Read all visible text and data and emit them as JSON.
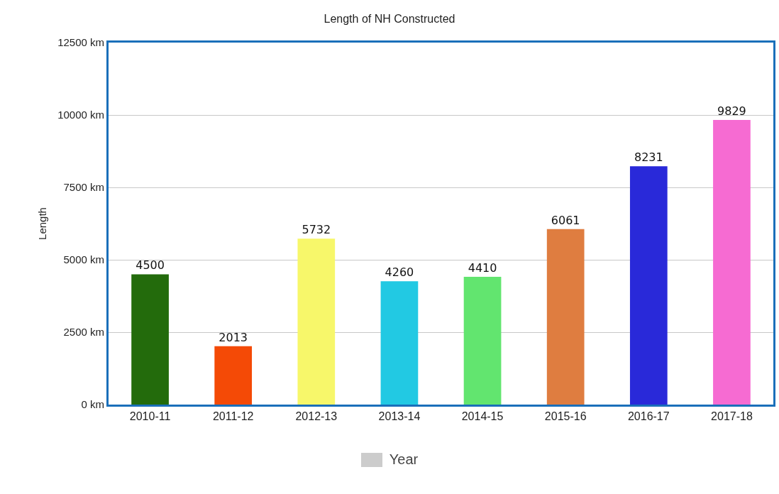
{
  "chart_data": {
    "type": "bar",
    "title": "Length of NH Constructed",
    "ylabel": "Length",
    "categories": [
      "2010-11",
      "2011-12",
      "2012-13",
      "2013-14",
      "2014-15",
      "2015-16",
      "2016-17",
      "2017-18"
    ],
    "series": [
      {
        "name": "Year",
        "color": "#cccccc",
        "colors": [
          "#236b0c",
          "#f44a06",
          "#f7f76a",
          "#22c9e3",
          "#62e56f",
          "#df7d40",
          "#2929d9",
          "#f66bd2"
        ],
        "values": [
          4500,
          2013,
          5732,
          4260,
          4410,
          6061,
          8231,
          9829
        ]
      }
    ],
    "ylim": [
      0,
      12500
    ],
    "yticks": [
      {
        "value": 0,
        "label": "0 km"
      },
      {
        "value": 2500,
        "label": "2500 km"
      },
      {
        "value": 5000,
        "label": "5000 km"
      },
      {
        "value": 7500,
        "label": "7500 km"
      },
      {
        "value": 10000,
        "label": "10000 km"
      },
      {
        "value": 12500,
        "label": "12500 km"
      }
    ],
    "grid": "y",
    "data_labels": true,
    "legend": "bottom"
  }
}
